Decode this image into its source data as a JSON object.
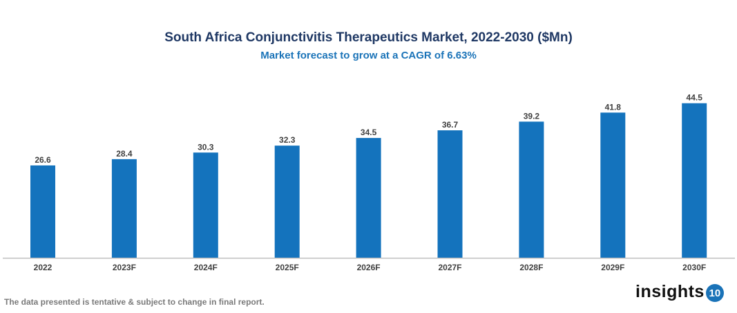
{
  "chart_data": {
    "type": "bar",
    "title": "South Africa Conjunctivitis Therapeutics Market, 2022-2030 ($Mn)",
    "subtitle": "Market forecast to grow at a CAGR of 6.63%",
    "categories": [
      "2022",
      "2023F",
      "2024F",
      "2025F",
      "2026F",
      "2027F",
      "2028F",
      "2029F",
      "2030F"
    ],
    "values": [
      26.6,
      28.4,
      30.3,
      32.3,
      34.5,
      36.7,
      39.2,
      41.8,
      44.5
    ],
    "xlabel": "",
    "ylabel": "",
    "ylim": [
      0,
      50
    ],
    "grid": false,
    "bar_color": "#1473bd",
    "data_labels": true
  },
  "footer": {
    "note": "The data presented is tentative & subject to change in final report."
  },
  "logo": {
    "text": "insights",
    "badge": "10"
  }
}
